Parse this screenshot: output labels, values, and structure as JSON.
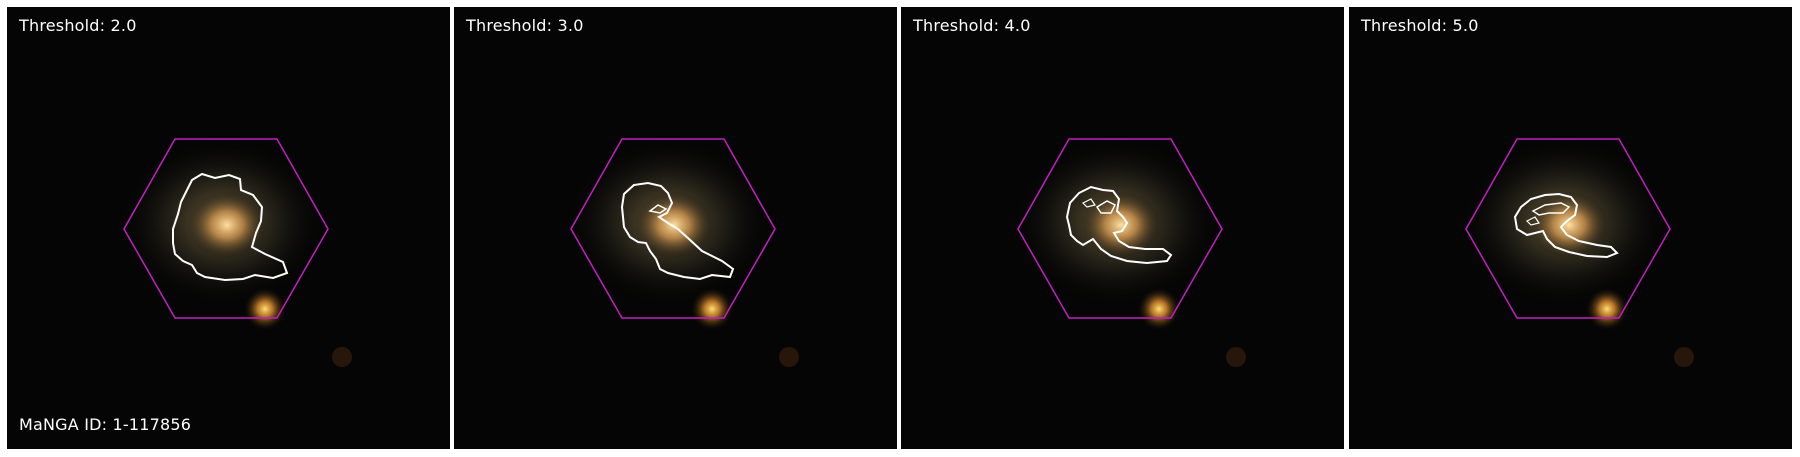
{
  "panels": [
    {
      "threshold_label": "Threshold: 2.0"
    },
    {
      "threshold_label": "Threshold: 3.0"
    },
    {
      "threshold_label": "Threshold: 4.0"
    },
    {
      "threshold_label": "Threshold: 5.0"
    }
  ],
  "manga_id_label": "MaNGA ID: 1-117856",
  "colors": {
    "background": "#050505",
    "hexagon": "#c020c0",
    "contour": "#ffffff",
    "galaxy_core": "#f0c070",
    "star": "#ffc040",
    "separator": "#ffffff"
  },
  "icons": {
    "hexagon": "ifu-hexagon-footprint",
    "contour": "spiral-arm-contour"
  }
}
